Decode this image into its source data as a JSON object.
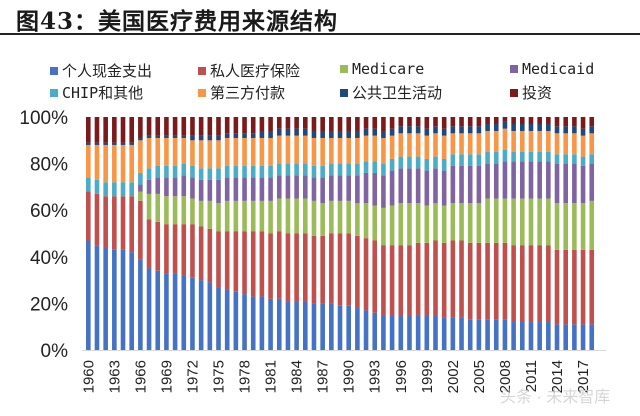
{
  "title": "图43：美国医疗费用来源结构",
  "chart_data": {
    "type": "bar",
    "stacked": true,
    "percent": true,
    "title": "美国医疗费用来源结构",
    "xlabel": "",
    "ylabel": "",
    "ylim": [
      0,
      100
    ],
    "yticks": [
      "0%",
      "20%",
      "40%",
      "60%",
      "80%",
      "100%"
    ],
    "xtick_labels": [
      "1960",
      "1963",
      "1966",
      "1969",
      "1972",
      "1975",
      "1978",
      "1981",
      "1984",
      "1987",
      "1990",
      "1993",
      "1996",
      "1999",
      "2002",
      "2005",
      "2008",
      "2011",
      "2014",
      "2017"
    ],
    "legend_position": "top",
    "categories": [
      "1960",
      "1961",
      "1962",
      "1963",
      "1964",
      "1965",
      "1966",
      "1967",
      "1968",
      "1969",
      "1970",
      "1971",
      "1972",
      "1973",
      "1974",
      "1975",
      "1976",
      "1977",
      "1978",
      "1979",
      "1980",
      "1981",
      "1982",
      "1983",
      "1984",
      "1985",
      "1986",
      "1987",
      "1988",
      "1989",
      "1990",
      "1991",
      "1992",
      "1993",
      "1994",
      "1995",
      "1996",
      "1997",
      "1998",
      "1999",
      "2000",
      "2001",
      "2002",
      "2003",
      "2004",
      "2005",
      "2006",
      "2007",
      "2008",
      "2009",
      "2010",
      "2011",
      "2012",
      "2013",
      "2014",
      "2015",
      "2016",
      "2017",
      "2018"
    ],
    "series": [
      {
        "name": "个人现金支出",
        "color": "#4472C4",
        "values": [
          47,
          45,
          44,
          43,
          43,
          42,
          39,
          35,
          34,
          33,
          33,
          32,
          31,
          30,
          29,
          27,
          26,
          25,
          24,
          23,
          23,
          22,
          22,
          21,
          21,
          21,
          20,
          20,
          20,
          19,
          19,
          18,
          17,
          16,
          15,
          15,
          15,
          15,
          15,
          15,
          15,
          14,
          14,
          14,
          13,
          13,
          13,
          13,
          13,
          12,
          12,
          12,
          12,
          12,
          11,
          11,
          11,
          11,
          11
        ]
      },
      {
        "name": "私人医疗保险",
        "color": "#C0504D",
        "values": [
          21,
          22,
          22,
          23,
          23,
          24,
          25,
          21,
          21,
          21,
          21,
          22,
          23,
          23,
          23,
          24,
          25,
          26,
          27,
          28,
          28,
          28,
          29,
          29,
          29,
          29,
          29,
          29,
          30,
          31,
          31,
          31,
          31,
          31,
          30,
          30,
          30,
          30,
          31,
          31,
          32,
          32,
          33,
          33,
          33,
          33,
          33,
          33,
          33,
          33,
          33,
          33,
          33,
          33,
          32,
          32,
          32,
          32,
          32
        ]
      },
      {
        "name": "Medicare",
        "color": "#9BBB59",
        "values": [
          0,
          0,
          0,
          0,
          0,
          0,
          4,
          11,
          12,
          12,
          12,
          12,
          11,
          11,
          12,
          12,
          13,
          13,
          13,
          13,
          13,
          14,
          14,
          15,
          15,
          15,
          15,
          14,
          14,
          14,
          14,
          14,
          15,
          15,
          16,
          17,
          18,
          18,
          17,
          16,
          16,
          16,
          16,
          16,
          17,
          17,
          19,
          19,
          19,
          20,
          20,
          20,
          20,
          20,
          20,
          20,
          20,
          20,
          21
        ]
      },
      {
        "name": "Medicaid",
        "color": "#8064A2",
        "values": [
          0,
          0,
          0,
          0,
          0,
          0,
          3,
          6,
          7,
          8,
          8,
          9,
          9,
          9,
          9,
          10,
          10,
          10,
          10,
          10,
          10,
          10,
          10,
          10,
          10,
          10,
          10,
          11,
          11,
          11,
          11,
          12,
          13,
          14,
          14,
          15,
          15,
          15,
          15,
          15,
          15,
          15,
          16,
          16,
          16,
          16,
          15,
          15,
          16,
          16,
          16,
          16,
          16,
          16,
          17,
          17,
          17,
          16,
          16
        ]
      },
      {
        "name": "CHIP和其他",
        "color": "#4BACC6",
        "values": [
          6,
          6,
          6,
          6,
          6,
          6,
          5,
          5,
          5,
          5,
          5,
          5,
          5,
          5,
          5,
          5,
          5,
          5,
          5,
          5,
          5,
          5,
          5,
          5,
          5,
          5,
          5,
          5,
          5,
          5,
          5,
          5,
          5,
          5,
          5,
          5,
          5,
          5,
          5,
          5,
          5,
          5,
          5,
          5,
          5,
          5,
          5,
          5,
          5,
          4,
          4,
          4,
          4,
          4,
          4,
          4,
          4,
          4,
          4
        ]
      },
      {
        "name": "第三方付款",
        "color": "#F79646",
        "values": [
          14,
          15,
          16,
          16,
          16,
          16,
          14,
          13,
          12,
          12,
          12,
          11,
          11,
          12,
          12,
          12,
          12,
          12,
          12,
          12,
          12,
          12,
          12,
          12,
          12,
          12,
          12,
          12,
          11,
          11,
          11,
          11,
          11,
          11,
          11,
          10,
          10,
          10,
          10,
          10,
          10,
          10,
          9,
          9,
          9,
          9,
          9,
          9,
          9,
          9,
          9,
          9,
          9,
          9,
          9,
          9,
          9,
          9,
          9
        ]
      },
      {
        "name": "公共卫生活动",
        "color": "#1F497D",
        "values": [
          1,
          1,
          1,
          1,
          1,
          1,
          1,
          1,
          1,
          1,
          1,
          1,
          2,
          2,
          2,
          2,
          2,
          2,
          2,
          2,
          3,
          3,
          3,
          3,
          3,
          3,
          3,
          3,
          3,
          3,
          3,
          3,
          3,
          3,
          3,
          3,
          3,
          3,
          3,
          3,
          3,
          3,
          3,
          3,
          3,
          3,
          3,
          3,
          3,
          3,
          3,
          3,
          3,
          3,
          3,
          3,
          3,
          3,
          3
        ]
      },
      {
        "name": "投资",
        "color": "#7B1A1A",
        "values": [
          11,
          11,
          11,
          11,
          11,
          11,
          9,
          8,
          8,
          8,
          8,
          8,
          8,
          8,
          8,
          8,
          7,
          7,
          7,
          7,
          6,
          6,
          5,
          5,
          5,
          5,
          6,
          6,
          6,
          6,
          6,
          6,
          5,
          5,
          6,
          5,
          4,
          4,
          4,
          5,
          4,
          5,
          4,
          4,
          4,
          4,
          3,
          3,
          2,
          3,
          3,
          3,
          3,
          3,
          4,
          4,
          4,
          5,
          4
        ]
      }
    ]
  },
  "watermark": "头条 · 未来智库"
}
